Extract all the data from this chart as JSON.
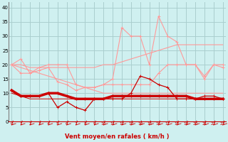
{
  "x": [
    0,
    1,
    2,
    3,
    4,
    5,
    6,
    7,
    8,
    9,
    10,
    11,
    12,
    13,
    14,
    15,
    16,
    17,
    18,
    19,
    20,
    21,
    22,
    23
  ],
  "rafales_jagged": [
    20,
    22,
    17,
    19,
    20,
    20,
    20,
    13,
    12,
    12,
    13,
    15,
    33,
    30,
    30,
    20,
    37,
    30,
    28,
    20,
    20,
    16,
    20,
    19
  ],
  "rafales_smooth": [
    20,
    20,
    19,
    19,
    19,
    19,
    19,
    19,
    19,
    19,
    20,
    20,
    21,
    22,
    23,
    24,
    25,
    26,
    27,
    27,
    27,
    27,
    27,
    27
  ],
  "vent_moyen_light": [
    20,
    17,
    17,
    18,
    19,
    14,
    13,
    11,
    12,
    12,
    13,
    13,
    13,
    13,
    13,
    13,
    17,
    20,
    20,
    20,
    20,
    15,
    20,
    20
  ],
  "vent_moyen_decline": [
    20,
    19,
    18,
    17,
    16,
    15,
    14,
    13,
    12,
    11,
    10,
    10,
    10,
    10,
    10,
    10,
    10,
    10,
    10,
    10,
    10,
    10,
    10,
    10
  ],
  "vent_moyen_dark_thick": [
    11,
    9,
    9,
    9,
    10,
    10,
    9,
    8,
    8,
    8,
    8,
    9,
    9,
    9,
    9,
    9,
    9,
    9,
    9,
    9,
    8,
    8,
    8,
    8
  ],
  "vent_moyen_dark_thin": [
    11,
    9,
    9,
    9,
    10,
    5,
    7,
    5,
    4,
    8,
    8,
    8,
    8,
    10,
    16,
    15,
    13,
    12,
    8,
    8,
    8,
    9,
    9,
    8
  ],
  "vent_moyen_dark_flat": [
    10,
    9,
    8,
    8,
    8,
    8,
    8,
    8,
    8,
    8,
    8,
    8,
    8,
    8,
    8,
    8,
    8,
    8,
    8,
    8,
    8,
    8,
    8,
    8
  ],
  "bg_color": "#cff0f0",
  "grid_color": "#aacece",
  "light_pink": "#ff9999",
  "medium_pink": "#ffaaaa",
  "dark_red": "#cc0000",
  "xlabel": "Vent moyen/en rafales ( km/h )",
  "ylabel_ticks": [
    0,
    5,
    10,
    15,
    20,
    25,
    30,
    35,
    40
  ],
  "ylim": [
    0,
    42
  ],
  "xlim": [
    -0.3,
    23.3
  ]
}
